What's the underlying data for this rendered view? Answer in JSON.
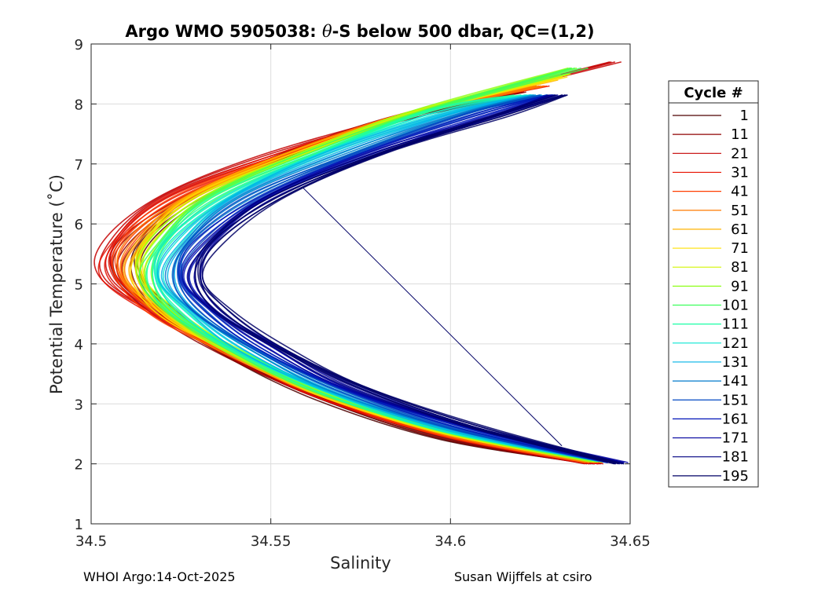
{
  "chart_data": {
    "type": "line",
    "title_prefix": "Argo WMO 5905038: ",
    "title_symbol": "θ",
    "title_suffix": "-S below 500 dbar,  QC=(1,2)",
    "xlabel": "Salinity",
    "ylabel": "Potential Temperature (˚C)",
    "xlim": [
      34.5,
      34.65
    ],
    "ylim": [
      1,
      9
    ],
    "xticks": [
      34.5,
      34.55,
      34.6,
      34.65
    ],
    "xtick_labels": [
      "34.5",
      "34.55",
      "34.6",
      "34.65"
    ],
    "yticks": [
      1,
      2,
      3,
      4,
      5,
      6,
      7,
      8,
      9
    ],
    "ytick_labels": [
      "1",
      "2",
      "3",
      "4",
      "5",
      "6",
      "7",
      "8",
      "9"
    ],
    "grid": true,
    "legend_title": "Cycle #",
    "legend_position": "outside-right",
    "series": [
      {
        "name": "1",
        "color": "#4d0000",
        "curve": [
          [
            34.64,
            2.0
          ],
          [
            34.6,
            2.4
          ],
          [
            34.565,
            3.05
          ],
          [
            34.54,
            3.75
          ],
          [
            34.523,
            4.45
          ],
          [
            34.513,
            5.1
          ],
          [
            34.515,
            5.7
          ],
          [
            34.53,
            6.45
          ],
          [
            34.56,
            7.25
          ],
          [
            34.59,
            7.8
          ],
          [
            34.615,
            8.1
          ]
        ]
      },
      {
        "name": "11",
        "color": "#8f0000",
        "curve": [
          [
            34.64,
            2.0
          ],
          [
            34.6,
            2.42
          ],
          [
            34.565,
            3.08
          ],
          [
            34.54,
            3.78
          ],
          [
            34.52,
            4.45
          ],
          [
            34.508,
            5.1
          ],
          [
            34.51,
            5.7
          ],
          [
            34.527,
            6.45
          ],
          [
            34.558,
            7.25
          ],
          [
            34.59,
            7.85
          ],
          [
            34.62,
            8.2
          ]
        ]
      },
      {
        "name": "21",
        "color": "#c40000",
        "curve": [
          [
            34.64,
            2.0
          ],
          [
            34.6,
            2.45
          ],
          [
            34.565,
            3.1
          ],
          [
            34.54,
            3.8
          ],
          [
            34.52,
            4.45
          ],
          [
            34.505,
            5.1
          ],
          [
            34.505,
            5.7
          ],
          [
            34.52,
            6.45
          ],
          [
            34.55,
            7.15
          ],
          [
            34.59,
            7.85
          ],
          [
            34.646,
            8.7
          ]
        ]
      },
      {
        "name": "31",
        "color": "#e81200",
        "curve": [
          [
            34.64,
            2.0
          ],
          [
            34.6,
            2.45
          ],
          [
            34.565,
            3.12
          ],
          [
            34.54,
            3.82
          ],
          [
            34.52,
            4.45
          ],
          [
            34.505,
            5.1
          ],
          [
            34.507,
            5.7
          ],
          [
            34.523,
            6.45
          ],
          [
            34.555,
            7.2
          ],
          [
            34.59,
            7.85
          ],
          [
            34.625,
            8.3
          ]
        ]
      },
      {
        "name": "41",
        "color": "#ff3d00",
        "curve": [
          [
            34.64,
            2.02
          ],
          [
            34.6,
            2.47
          ],
          [
            34.565,
            3.13
          ],
          [
            34.54,
            3.82
          ],
          [
            34.52,
            4.45
          ],
          [
            34.508,
            5.1
          ],
          [
            34.51,
            5.7
          ],
          [
            34.525,
            6.45
          ],
          [
            34.556,
            7.2
          ],
          [
            34.59,
            7.85
          ],
          [
            34.625,
            8.3
          ]
        ]
      },
      {
        "name": "51",
        "color": "#ff7a00",
        "curve": [
          [
            34.64,
            2.02
          ],
          [
            34.6,
            2.48
          ],
          [
            34.565,
            3.14
          ],
          [
            34.54,
            3.83
          ],
          [
            34.521,
            4.45
          ],
          [
            34.51,
            5.1
          ],
          [
            34.512,
            5.7
          ],
          [
            34.527,
            6.45
          ],
          [
            34.557,
            7.2
          ],
          [
            34.59,
            7.85
          ],
          [
            34.625,
            8.3
          ]
        ]
      },
      {
        "name": "61",
        "color": "#ffb300",
        "curve": [
          [
            34.641,
            2.03
          ],
          [
            34.6,
            2.5
          ],
          [
            34.565,
            3.15
          ],
          [
            34.54,
            3.84
          ],
          [
            34.522,
            4.45
          ],
          [
            34.512,
            5.1
          ],
          [
            34.514,
            5.7
          ],
          [
            34.528,
            6.45
          ],
          [
            34.558,
            7.2
          ],
          [
            34.59,
            7.85
          ],
          [
            34.628,
            8.4
          ]
        ]
      },
      {
        "name": "71",
        "color": "#ffe000",
        "curve": [
          [
            34.641,
            2.03
          ],
          [
            34.6,
            2.5
          ],
          [
            34.565,
            3.16
          ],
          [
            34.54,
            3.85
          ],
          [
            34.522,
            4.45
          ],
          [
            34.513,
            5.1
          ],
          [
            34.516,
            5.7
          ],
          [
            34.53,
            6.45
          ],
          [
            34.559,
            7.2
          ],
          [
            34.59,
            7.85
          ],
          [
            34.63,
            8.45
          ]
        ]
      },
      {
        "name": "81",
        "color": "#d4f500",
        "curve": [
          [
            34.642,
            2.03
          ],
          [
            34.6,
            2.52
          ],
          [
            34.565,
            3.17
          ],
          [
            34.54,
            3.86
          ],
          [
            34.523,
            4.5
          ],
          [
            34.514,
            5.1
          ],
          [
            34.517,
            5.7
          ],
          [
            34.531,
            6.45
          ],
          [
            34.56,
            7.2
          ],
          [
            34.59,
            7.85
          ],
          [
            34.632,
            8.5
          ]
        ]
      },
      {
        "name": "91",
        "color": "#8fff1a",
        "curve": [
          [
            34.642,
            2.03
          ],
          [
            34.6,
            2.52
          ],
          [
            34.565,
            3.18
          ],
          [
            34.54,
            3.87
          ],
          [
            34.523,
            4.5
          ],
          [
            34.515,
            5.1
          ],
          [
            34.518,
            5.7
          ],
          [
            34.532,
            6.45
          ],
          [
            34.561,
            7.2
          ],
          [
            34.592,
            7.9
          ],
          [
            34.634,
            8.6
          ]
        ]
      },
      {
        "name": "101",
        "color": "#3dff5c",
        "curve": [
          [
            34.643,
            2.04
          ],
          [
            34.6,
            2.53
          ],
          [
            34.565,
            3.19
          ],
          [
            34.54,
            3.88
          ],
          [
            34.523,
            4.5
          ],
          [
            34.516,
            5.1
          ],
          [
            34.52,
            5.7
          ],
          [
            34.534,
            6.45
          ],
          [
            34.562,
            7.2
          ],
          [
            34.594,
            7.9
          ],
          [
            34.636,
            8.6
          ]
        ]
      },
      {
        "name": "111",
        "color": "#1affa6",
        "curve": [
          [
            34.643,
            2.04
          ],
          [
            34.6,
            2.54
          ],
          [
            34.565,
            3.2
          ],
          [
            34.54,
            3.89
          ],
          [
            34.524,
            4.55
          ],
          [
            34.517,
            5.1
          ],
          [
            34.521,
            5.7
          ],
          [
            34.536,
            6.45
          ],
          [
            34.564,
            7.2
          ],
          [
            34.596,
            7.9
          ],
          [
            34.62,
            8.15
          ]
        ]
      },
      {
        "name": "121",
        "color": "#0ae6d4",
        "curve": [
          [
            34.644,
            2.04
          ],
          [
            34.6,
            2.55
          ],
          [
            34.566,
            3.21
          ],
          [
            34.542,
            3.9
          ],
          [
            34.526,
            4.55
          ],
          [
            34.519,
            5.1
          ],
          [
            34.523,
            5.7
          ],
          [
            34.538,
            6.45
          ],
          [
            34.566,
            7.2
          ],
          [
            34.598,
            7.85
          ],
          [
            34.622,
            8.15
          ]
        ]
      },
      {
        "name": "131",
        "color": "#00b3e6",
        "curve": [
          [
            34.644,
            2.04
          ],
          [
            34.6,
            2.56
          ],
          [
            34.567,
            3.22
          ],
          [
            34.543,
            3.9
          ],
          [
            34.528,
            4.55
          ],
          [
            34.521,
            5.1
          ],
          [
            34.525,
            5.7
          ],
          [
            34.54,
            6.45
          ],
          [
            34.568,
            7.2
          ],
          [
            34.6,
            7.85
          ],
          [
            34.624,
            8.15
          ]
        ]
      },
      {
        "name": "141",
        "color": "#007acc",
        "curve": [
          [
            34.645,
            2.02
          ],
          [
            34.602,
            2.57
          ],
          [
            34.568,
            3.24
          ],
          [
            34.545,
            3.92
          ],
          [
            34.53,
            4.55
          ],
          [
            34.523,
            5.1
          ],
          [
            34.527,
            5.7
          ],
          [
            34.543,
            6.45
          ],
          [
            34.572,
            7.2
          ],
          [
            34.604,
            7.85
          ],
          [
            34.626,
            8.15
          ]
        ]
      },
      {
        "name": "151",
        "color": "#0047c2",
        "curve": [
          [
            34.645,
            2.02
          ],
          [
            34.603,
            2.58
          ],
          [
            34.569,
            3.25
          ],
          [
            34.546,
            3.93
          ],
          [
            34.531,
            4.55
          ],
          [
            34.524,
            5.1
          ],
          [
            34.529,
            5.7
          ],
          [
            34.545,
            6.45
          ],
          [
            34.575,
            7.2
          ],
          [
            34.607,
            7.85
          ],
          [
            34.627,
            8.15
          ]
        ]
      },
      {
        "name": "161",
        "color": "#0014b8",
        "curve": [
          [
            34.646,
            2.02
          ],
          [
            34.604,
            2.6
          ],
          [
            34.57,
            3.27
          ],
          [
            34.548,
            3.95
          ],
          [
            34.533,
            4.55
          ],
          [
            34.526,
            5.1
          ],
          [
            34.531,
            5.7
          ],
          [
            34.548,
            6.45
          ],
          [
            34.578,
            7.2
          ],
          [
            34.61,
            7.85
          ],
          [
            34.628,
            8.15
          ]
        ]
      },
      {
        "name": "171",
        "color": "#00009e",
        "curve": [
          [
            34.647,
            2.02
          ],
          [
            34.605,
            2.62
          ],
          [
            34.572,
            3.28
          ],
          [
            34.55,
            3.96
          ],
          [
            34.535,
            4.55
          ],
          [
            34.528,
            5.1
          ],
          [
            34.533,
            5.7
          ],
          [
            34.55,
            6.45
          ],
          [
            34.58,
            7.2
          ],
          [
            34.612,
            7.8
          ],
          [
            34.63,
            8.15
          ]
        ]
      },
      {
        "name": "181",
        "color": "#000080",
        "curve": [
          [
            34.647,
            2.0
          ],
          [
            34.606,
            2.63
          ],
          [
            34.573,
            3.3
          ],
          [
            34.551,
            3.97
          ],
          [
            34.536,
            4.55
          ],
          [
            34.529,
            5.1
          ],
          [
            34.534,
            5.7
          ],
          [
            34.551,
            6.45
          ],
          [
            34.581,
            7.2
          ],
          [
            34.613,
            7.8
          ],
          [
            34.63,
            8.15
          ]
        ]
      },
      {
        "name": "195",
        "color": "#000066",
        "curve": [
          [
            34.647,
            2.0
          ],
          [
            34.606,
            2.64
          ],
          [
            34.574,
            3.31
          ],
          [
            34.552,
            3.98
          ],
          [
            34.537,
            4.55
          ],
          [
            34.53,
            5.1
          ],
          [
            34.535,
            5.7
          ],
          [
            34.552,
            6.45
          ],
          [
            34.582,
            7.2
          ],
          [
            34.614,
            7.8
          ],
          [
            34.631,
            8.15
          ]
        ]
      }
    ],
    "spurious_segment": {
      "from": [
        34.559,
        6.6
      ],
      "to": [
        34.631,
        2.3
      ],
      "color": "#000066"
    }
  },
  "footer": {
    "left": "WHOI Argo:14-Oct-2025",
    "right": "Susan Wijffels at csiro"
  }
}
